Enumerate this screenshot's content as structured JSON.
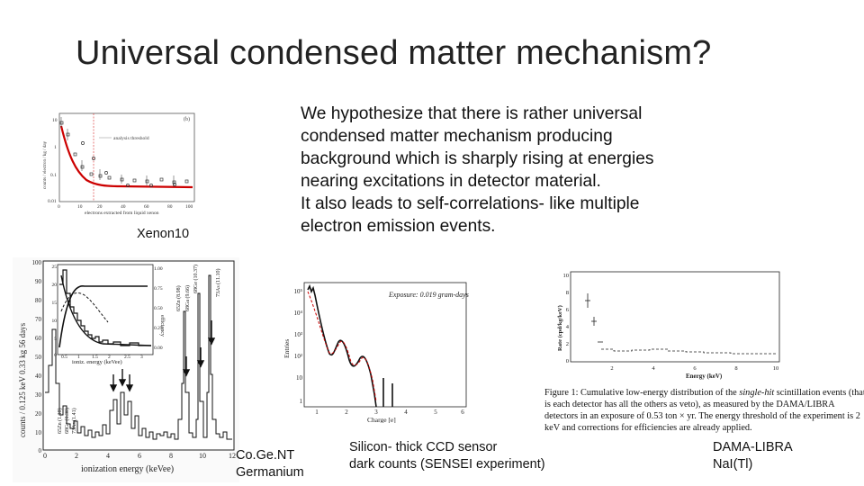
{
  "slide": {
    "title": "Universal condensed matter mechanism?",
    "hypothesis_lines": [
      "We hypothesize that there is  rather universal",
      "condensed matter  mechanism producing",
      "background which is sharply rising at energies",
      "nearing excitations in detector material.",
      "It also leads to self-correlations- like multiple",
      "electron emission events."
    ]
  },
  "xenon10": {
    "caption": "Xenon10",
    "panel_label": "(b)",
    "threshold_label": "analysis threshold",
    "xlabel": "electrons extracted from liquid xenon",
    "ylabel": "counts / electron / kg / day",
    "y_ticks": [
      "10",
      "1",
      "0.1",
      "0.01"
    ],
    "x_ticks": [
      "0",
      "10",
      "20",
      "40",
      "60",
      "80",
      "100"
    ]
  },
  "cogent": {
    "caption_line1": "Co.Ge.NT",
    "caption_line2": "Germanium",
    "ylabel_main": "counts / 0.125 keV  0.33 kg  56 days",
    "xlabel_main": "ionization energy (keVee)",
    "y_ticks": [
      "100",
      "90",
      "80",
      "70",
      "60",
      "50",
      "40",
      "30",
      "20",
      "10",
      "0"
    ],
    "x_ticks": [
      "0",
      "2",
      "4",
      "6",
      "8",
      "10",
      "12"
    ],
    "inset_xlabel": "ioniz. energy (keVee)",
    "inset_y_ticks": [
      "25",
      "20",
      "15",
      "10",
      "5",
      "0"
    ],
    "inset_x_ticks": [
      "0.5",
      "1",
      "1.5",
      "2",
      "2.5",
      "3"
    ],
    "inset_right_axis": "efficiency",
    "inset_right_ticks": [
      "1.00",
      "0.75",
      "0.50",
      "0.25",
      "0.00"
    ],
    "peak_labels": [
      "65Zn (8.98)",
      "68Ge (10.37)",
      "68Ga (9.66)",
      "73As (11.10)",
      "65Zn (1.10)",
      "68Ge (1.30)",
      "73As (1.41)"
    ]
  },
  "sensei": {
    "caption_line1": "Silicon- thick CCD sensor",
    "caption_line2": "dark counts (SENSEI experiment)",
    "exposure_label": "Exposure: 0.019 gram-days",
    "xlabel": "Charge [e]",
    "ylabel": "Entries",
    "y_ticks": [
      "10⁵",
      "10⁴",
      "10³",
      "10²",
      "10",
      "1"
    ],
    "x_ticks": [
      "1",
      "2",
      "3",
      "4",
      "5",
      "6"
    ]
  },
  "dama": {
    "caption_line1": "DAMA-LIBRA",
    "caption_line2": "NaI(Tl)",
    "ylabel": "Rate (cpd/kg/keV)",
    "xlabel": "Energy (keV)",
    "y_ticks": [
      "10",
      "8",
      "6",
      "4",
      "2",
      "0"
    ],
    "x_ticks": [
      "2",
      "4",
      "6",
      "8",
      "10"
    ],
    "figure_caption_prefix": "Figure 1: Cumulative low-energy distribution of the ",
    "figure_caption_italic": "single-hit",
    "figure_caption_rest": " scintillation events (that is each detector has all the others as veto), as measured by the DAMA/LIBRA detectors in an exposure of 0.53 ton × yr. The energy threshold of the experiment is 2 keV and corrections for efficiencies are already applied."
  }
}
